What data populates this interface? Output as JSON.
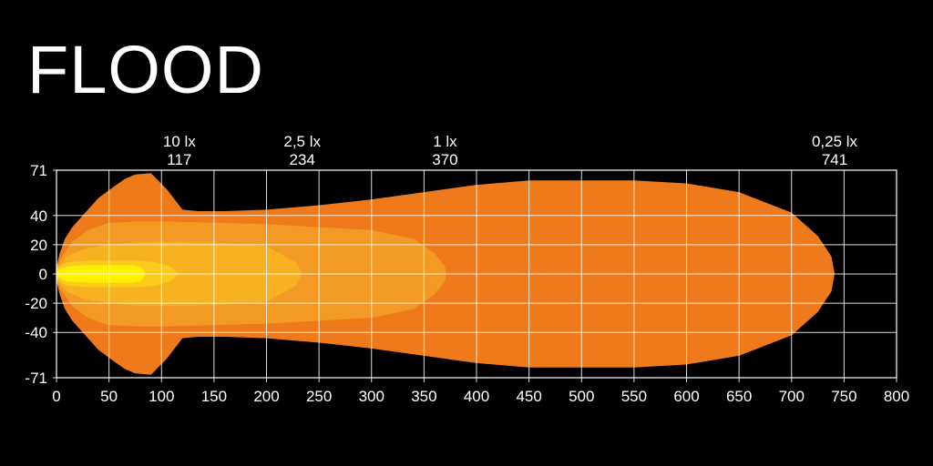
{
  "title": "FLOOD",
  "chart_data": {
    "type": "area",
    "title": "FLOOD",
    "xlabel": "",
    "ylabel": "",
    "xlim": [
      0,
      800
    ],
    "ylim": [
      -71,
      71
    ],
    "x_ticks": [
      0,
      50,
      100,
      150,
      200,
      250,
      300,
      350,
      400,
      450,
      500,
      550,
      600,
      650,
      700,
      750,
      800
    ],
    "y_ticks": [
      71,
      40,
      20,
      0,
      -20,
      -40,
      -71
    ],
    "grid": true,
    "markers": [
      {
        "lux": "10 lx",
        "distance": 117
      },
      {
        "lux": "2,5 lx",
        "distance": 234
      },
      {
        "lux": "1 lx",
        "distance": 370
      },
      {
        "lux": "0,25 lx",
        "distance": 741
      }
    ],
    "series": [
      {
        "color": "#ee7a1c",
        "points": [
          [
            0,
            5
          ],
          [
            3,
            14
          ],
          [
            8,
            24
          ],
          [
            15,
            32
          ],
          [
            25,
            40
          ],
          [
            40,
            52
          ],
          [
            55,
            60
          ],
          [
            65,
            65
          ],
          [
            75,
            68
          ],
          [
            90,
            69
          ],
          [
            105,
            58
          ],
          [
            120,
            44
          ],
          [
            135,
            43
          ],
          [
            160,
            43
          ],
          [
            200,
            44
          ],
          [
            250,
            47
          ],
          [
            300,
            51
          ],
          [
            350,
            56
          ],
          [
            400,
            61
          ],
          [
            450,
            64
          ],
          [
            500,
            64
          ],
          [
            550,
            64
          ],
          [
            600,
            62
          ],
          [
            650,
            56
          ],
          [
            700,
            42
          ],
          [
            725,
            26
          ],
          [
            738,
            12
          ],
          [
            741,
            0
          ]
        ]
      },
      {
        "color": "#f29a24",
        "points": [
          [
            0,
            5
          ],
          [
            5,
            12
          ],
          [
            15,
            22
          ],
          [
            30,
            30
          ],
          [
            50,
            35
          ],
          [
            80,
            36
          ],
          [
            100,
            36
          ],
          [
            150,
            35
          ],
          [
            200,
            34
          ],
          [
            250,
            32
          ],
          [
            300,
            30
          ],
          [
            340,
            24
          ],
          [
            360,
            14
          ],
          [
            370,
            5
          ],
          [
            371,
            0
          ]
        ]
      },
      {
        "color": "#f7b222",
        "points": [
          [
            0,
            4
          ],
          [
            10,
            12
          ],
          [
            25,
            17
          ],
          [
            50,
            20
          ],
          [
            80,
            22
          ],
          [
            120,
            22
          ],
          [
            160,
            21
          ],
          [
            200,
            19
          ],
          [
            215,
            13
          ],
          [
            228,
            8
          ],
          [
            234,
            0
          ]
        ]
      },
      {
        "color": "#fbcb1c",
        "points": [
          [
            0,
            4
          ],
          [
            10,
            8
          ],
          [
            30,
            9
          ],
          [
            60,
            9
          ],
          [
            80,
            9
          ],
          [
            95,
            8
          ],
          [
            108,
            5
          ],
          [
            117,
            0
          ]
        ]
      },
      {
        "color": "#fff000",
        "points": [
          [
            0,
            2
          ],
          [
            10,
            5
          ],
          [
            30,
            6
          ],
          [
            50,
            6
          ],
          [
            70,
            6
          ],
          [
            80,
            5
          ],
          [
            85,
            0
          ]
        ]
      }
    ]
  }
}
